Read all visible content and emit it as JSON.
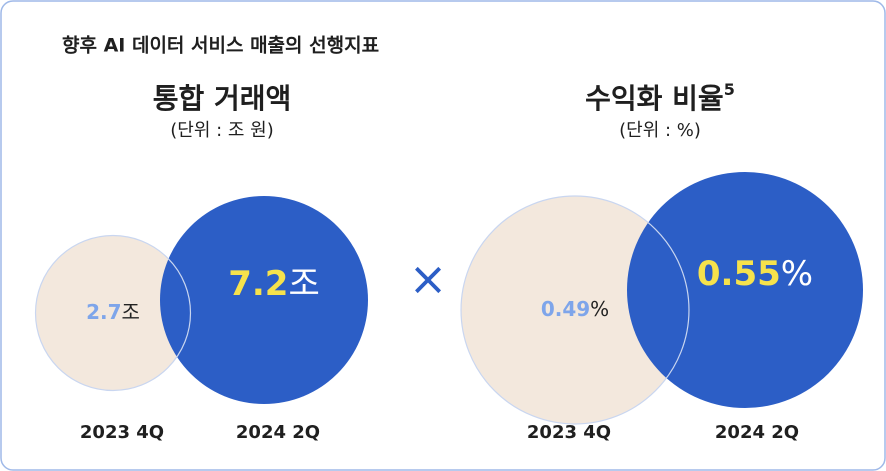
{
  "heading": "향후 AI 데이터 서비스 매출의 선행지표",
  "operator": "×",
  "chart_data": [
    {
      "type": "bubble",
      "title": "통합 거래액",
      "subtitle": "(단위 : 조 원)",
      "unit": "조",
      "categories": [
        "2023 4Q",
        "2024 2Q"
      ],
      "values": [
        2.7,
        7.2
      ],
      "colors": [
        "#f3e8dd",
        "#2c5ec6"
      ],
      "label_colors": [
        "#7ea5ea",
        "#f6e24c"
      ],
      "unit_colors": [
        "#222222",
        "#ffffff"
      ]
    },
    {
      "type": "bubble",
      "title": "수익화 비율",
      "footnote": "5",
      "subtitle": "(단위 : %)",
      "unit": "%",
      "categories": [
        "2023 4Q",
        "2024 2Q"
      ],
      "values": [
        0.49,
        0.55
      ],
      "colors": [
        "#f3e8dd",
        "#2c5ec6"
      ],
      "label_colors": [
        "#7ea5ea",
        "#f6e24c"
      ],
      "unit_colors": [
        "#222222",
        "#ffffff"
      ]
    }
  ]
}
